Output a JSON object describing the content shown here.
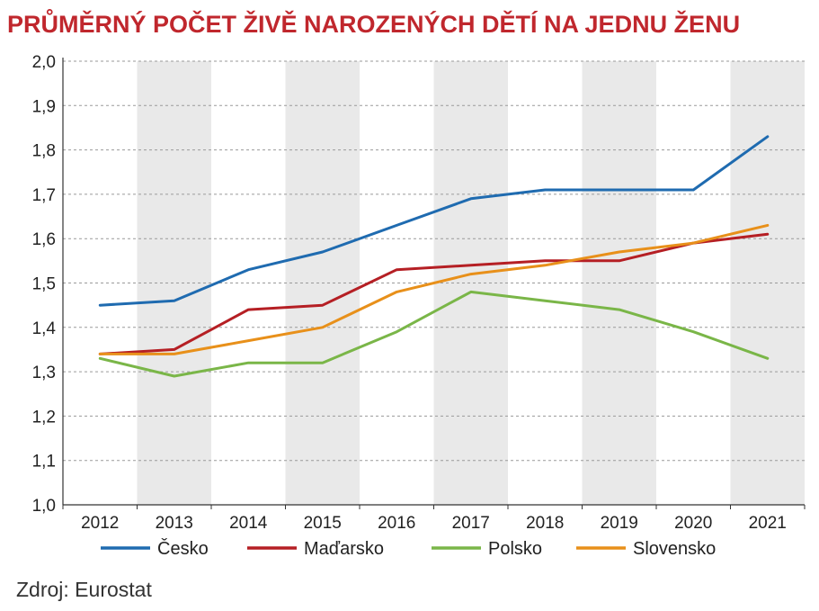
{
  "chart_data": {
    "type": "line",
    "title": "PRŮMĚRNÝ POČET ŽIVĚ NAROZENÝCH DĚTÍ NA JEDNU ŽENU",
    "x": [
      "2012",
      "2013",
      "2014",
      "2015",
      "2016",
      "2017",
      "2018",
      "2019",
      "2020",
      "2021"
    ],
    "y_ticks": [
      "1,0",
      "1,1",
      "1,2",
      "1,3",
      "1,4",
      "1,5",
      "1,6",
      "1,7",
      "1,8",
      "1,9",
      "2,0"
    ],
    "ylim": [
      1.0,
      2.0
    ],
    "grid": "horizontal dashed",
    "alternating_column_shading": true,
    "legend_position": "bottom",
    "series": [
      {
        "name": "Česko",
        "color": "#1f6bb0",
        "values": [
          1.45,
          1.46,
          1.53,
          1.57,
          1.63,
          1.69,
          1.71,
          1.71,
          1.71,
          1.83
        ]
      },
      {
        "name": "Maďarsko",
        "color": "#b51f24",
        "values": [
          1.34,
          1.35,
          1.44,
          1.45,
          1.53,
          1.54,
          1.55,
          1.55,
          1.59,
          1.61
        ]
      },
      {
        "name": "Polsko",
        "color": "#7ab648",
        "values": [
          1.33,
          1.29,
          1.32,
          1.32,
          1.39,
          1.48,
          1.46,
          1.44,
          1.39,
          1.33
        ]
      },
      {
        "name": "Slovensko",
        "color": "#e8901a",
        "values": [
          1.34,
          1.34,
          1.37,
          1.4,
          1.48,
          1.52,
          1.54,
          1.57,
          1.59,
          1.63
        ]
      }
    ]
  },
  "source": "Zdroj: Eurostat"
}
